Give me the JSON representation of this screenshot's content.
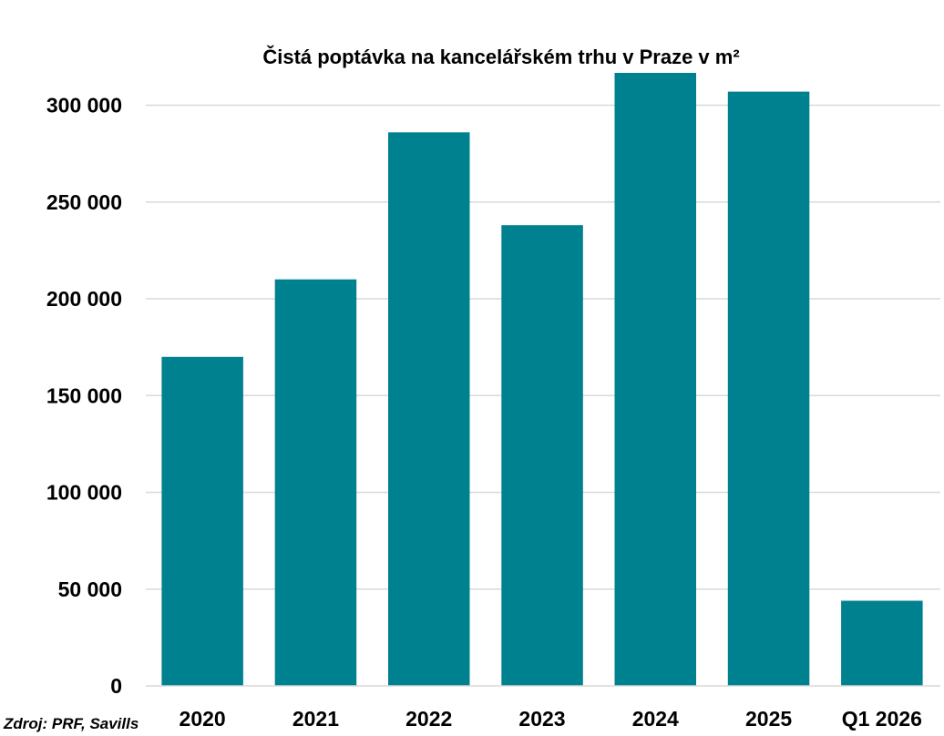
{
  "chart_data": {
    "type": "bar",
    "title": "Čistá poptávka na kancelářském trhu v Praze v m²",
    "xlabel": "",
    "ylabel": "",
    "categories": [
      "2020",
      "2021",
      "2022",
      "2023",
      "2024",
      "2025",
      "Q1 2026"
    ],
    "values": [
      170000,
      210000,
      286000,
      238000,
      317000,
      307000,
      44000
    ],
    "ylim": [
      0,
      320000
    ],
    "yticks": [
      0,
      50000,
      100000,
      150000,
      200000,
      250000,
      300000
    ],
    "ytick_labels": [
      "0",
      "50 000",
      "100 000",
      "150 000",
      "200 000",
      "250 000",
      "300 000"
    ],
    "grid": true,
    "legend": "none",
    "bar_color": "#00818F",
    "grid_color": "#D9D9D9"
  },
  "source_note": "Zdroj: PRF, Savills"
}
